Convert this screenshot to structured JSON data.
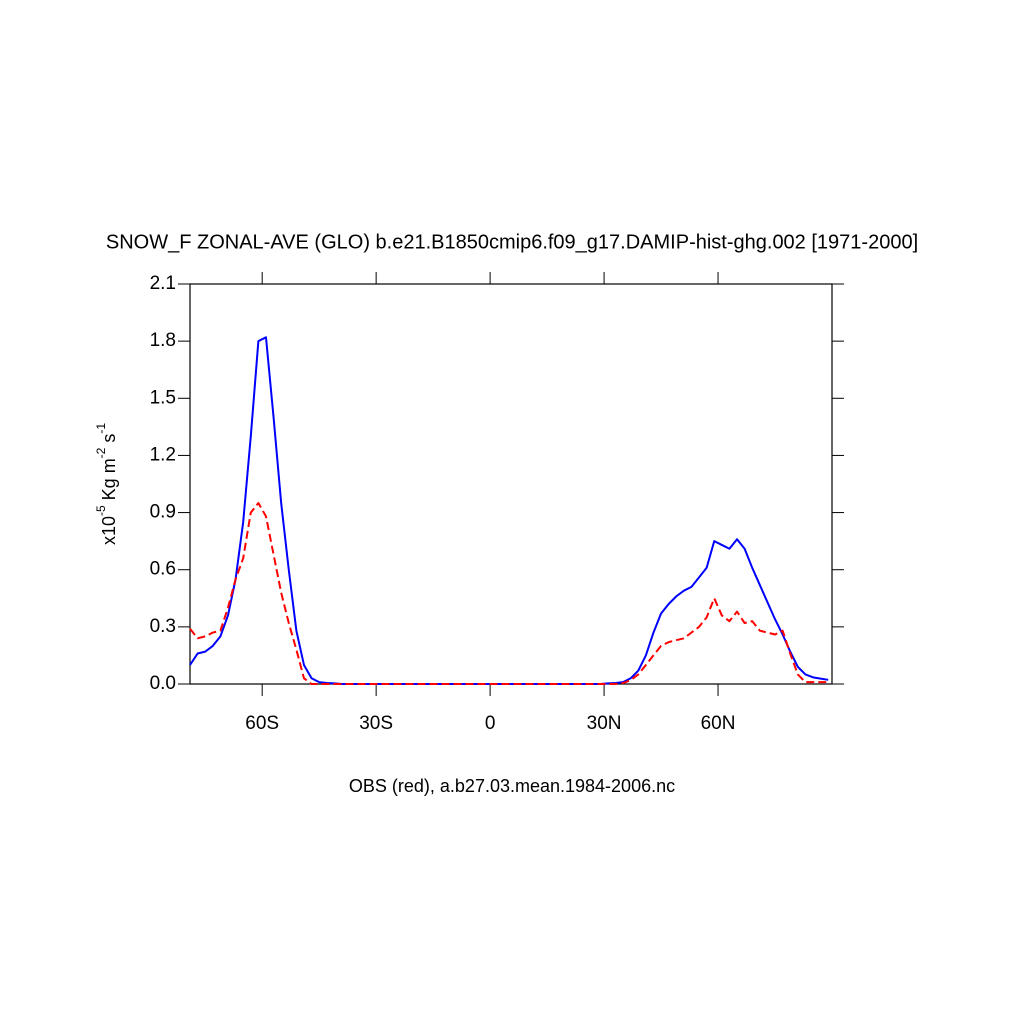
{
  "chart_data": {
    "type": "line",
    "title": "SNOW_F ZONAL-AVE (GLO) b.e21.B1850cmip6.f09_g17.DAMIP-hist-ghg.002 [1971-2000]",
    "xlabel": "OBS (red), a.b27.03.mean.1984-2006.nc",
    "ylabel": [
      {
        "text": "x10"
      },
      {
        "sup": "-5"
      },
      {
        "text": " Kg m"
      },
      {
        "sup": "-2"
      },
      {
        "text": " s"
      },
      {
        "sup": "-1"
      }
    ],
    "xlim": [
      -79,
      90
    ],
    "ylim": [
      0,
      2.1
    ],
    "xticks": [
      {
        "value": -60,
        "label": "60S"
      },
      {
        "value": -30,
        "label": "30S"
      },
      0,
      {
        "value": 30,
        "label": "30N"
      },
      {
        "value": 60,
        "label": "60N"
      }
    ],
    "yticks": [
      {
        "value": 0,
        "label": "0.0"
      },
      0.3,
      0.6,
      0.9,
      1.2,
      1.5,
      1.8,
      2.1
    ],
    "x": [
      -79,
      -77,
      -75,
      -73,
      -71,
      -69,
      -67,
      -65,
      -63,
      -61,
      -59,
      -57,
      -55,
      -53,
      -51,
      -49,
      -47,
      -45,
      -43,
      -41,
      -39,
      -37,
      -35,
      -33,
      -31,
      -29,
      -27,
      -25,
      -23,
      -21,
      -19,
      -17,
      -15,
      -13,
      -11,
      -9,
      -7,
      -5,
      -3,
      -1,
      1,
      3,
      5,
      7,
      9,
      11,
      13,
      15,
      17,
      19,
      21,
      23,
      25,
      27,
      29,
      31,
      33,
      35,
      37,
      39,
      41,
      43,
      45,
      47,
      49,
      51,
      53,
      55,
      57,
      59,
      61,
      63,
      65,
      67,
      69,
      71,
      73,
      75,
      77,
      79,
      81,
      83,
      85,
      87,
      89
    ],
    "series": [
      {
        "color": "#0000ff",
        "dash": false,
        "values": [
          0.1,
          0.16,
          0.17,
          0.2,
          0.25,
          0.36,
          0.55,
          0.85,
          1.3,
          1.8,
          1.82,
          1.4,
          0.95,
          0.6,
          0.28,
          0.1,
          0.03,
          0.01,
          0.005,
          0.003,
          0,
          0,
          0,
          0,
          0,
          0,
          0,
          0,
          0,
          0,
          0,
          0,
          0,
          0,
          0,
          0,
          0,
          0,
          0,
          0,
          0,
          0,
          0,
          0,
          0,
          0,
          0,
          0,
          0,
          0,
          0,
          0,
          0,
          0,
          0,
          0.003,
          0.005,
          0.01,
          0.03,
          0.07,
          0.15,
          0.27,
          0.37,
          0.42,
          0.46,
          0.49,
          0.51,
          0.56,
          0.61,
          0.75,
          0.73,
          0.71,
          0.76,
          0.71,
          0.61,
          0.52,
          0.43,
          0.34,
          0.26,
          0.17,
          0.09,
          0.05,
          0.035,
          0.028,
          0.022
        ]
      },
      {
        "color": "#ff0000",
        "dash": true,
        "values": [
          0.29,
          0.24,
          0.25,
          0.27,
          0.28,
          0.4,
          0.55,
          0.66,
          0.9,
          0.95,
          0.88,
          0.68,
          0.48,
          0.32,
          0.18,
          0.03,
          0,
          0,
          0,
          0,
          0,
          0,
          0,
          0,
          0,
          0,
          0,
          0,
          0,
          0,
          0,
          0,
          0,
          0,
          0,
          0,
          0,
          0,
          0,
          0,
          0,
          0,
          0,
          0,
          0,
          0,
          0,
          0,
          0,
          0,
          0,
          0,
          0,
          0,
          0,
          0,
          0,
          0.005,
          0.02,
          0.05,
          0.1,
          0.15,
          0.2,
          0.22,
          0.23,
          0.24,
          0.27,
          0.3,
          0.35,
          0.45,
          0.36,
          0.33,
          0.38,
          0.32,
          0.33,
          0.28,
          0.27,
          0.26,
          0.28,
          0.16,
          0.05,
          0.01,
          0.01,
          0.01,
          0.01
        ]
      }
    ]
  }
}
